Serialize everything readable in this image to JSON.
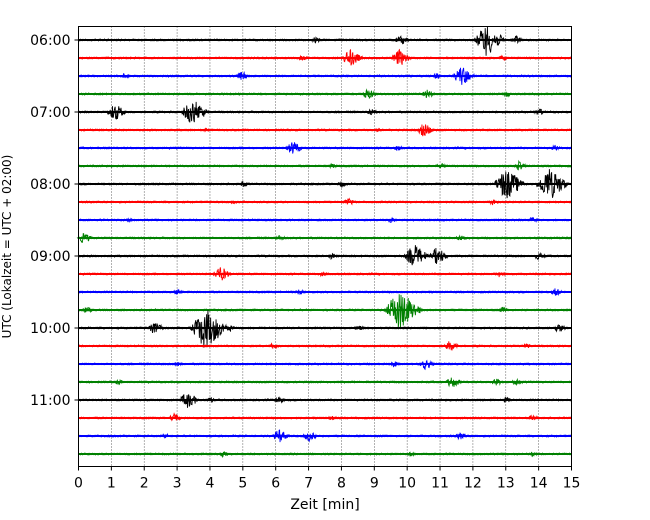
{
  "chart_data": {
    "type": "line",
    "title": "",
    "xlabel": "Zeit  [min]",
    "ylabel": "UTC (Lokalzeit = UTC + 02:00)",
    "xlim": [
      0,
      15
    ],
    "x_ticks": [
      "0",
      "1",
      "2",
      "3",
      "4",
      "5",
      "6",
      "7",
      "8",
      "9",
      "10",
      "11",
      "12",
      "13",
      "14",
      "15"
    ],
    "y_tick_labels": [
      "06:00",
      "07:00",
      "08:00",
      "09:00",
      "10:00",
      "11:00"
    ],
    "grid": "vertical dotted",
    "trace_interval_min": 15,
    "trace_colors": [
      "#000000",
      "#ff0000",
      "#0000ff",
      "#008000"
    ],
    "traces": [
      {
        "start": "06:00",
        "events": [
          [
            12.4,
            1.0
          ],
          [
            9.8,
            0.35
          ],
          [
            13.3,
            0.3
          ],
          [
            7.2,
            0.2
          ]
        ]
      },
      {
        "start": "06:15",
        "events": [
          [
            8.25,
            0.6
          ],
          [
            9.75,
            0.55
          ],
          [
            12.9,
            0.2
          ],
          [
            6.8,
            0.2
          ]
        ]
      },
      {
        "start": "06:30",
        "events": [
          [
            11.65,
            0.65
          ],
          [
            4.95,
            0.3
          ],
          [
            10.9,
            0.2
          ],
          [
            1.4,
            0.2
          ]
        ]
      },
      {
        "start": "06:45",
        "events": [
          [
            8.8,
            0.35
          ],
          [
            10.6,
            0.3
          ],
          [
            13.0,
            0.2
          ]
        ]
      },
      {
        "start": "07:00",
        "events": [
          [
            3.45,
            0.85
          ],
          [
            1.1,
            0.55
          ],
          [
            14.0,
            0.25
          ],
          [
            8.9,
            0.2
          ]
        ]
      },
      {
        "start": "07:15",
        "events": [
          [
            10.5,
            0.45
          ],
          [
            9.1,
            0.15
          ],
          [
            3.9,
            0.15
          ]
        ]
      },
      {
        "start": "07:30",
        "events": [
          [
            6.5,
            0.45
          ],
          [
            14.5,
            0.2
          ],
          [
            9.7,
            0.2
          ]
        ]
      },
      {
        "start": "07:45",
        "events": [
          [
            13.4,
            0.3
          ],
          [
            11.0,
            0.2
          ],
          [
            7.7,
            0.15
          ]
        ]
      },
      {
        "start": "08:00",
        "events": [
          [
            13.0,
            1.0
          ],
          [
            14.3,
            1.05
          ],
          [
            5.0,
            0.2
          ],
          [
            8.0,
            0.2
          ]
        ]
      },
      {
        "start": "08:15",
        "events": [
          [
            8.2,
            0.3
          ],
          [
            12.6,
            0.2
          ],
          [
            4.7,
            0.15
          ]
        ]
      },
      {
        "start": "08:30",
        "events": [
          [
            9.5,
            0.2
          ],
          [
            1.5,
            0.15
          ],
          [
            13.8,
            0.2
          ]
        ]
      },
      {
        "start": "08:45",
        "events": [
          [
            0.15,
            0.35
          ],
          [
            11.6,
            0.2
          ],
          [
            6.1,
            0.2
          ]
        ]
      },
      {
        "start": "09:00",
        "events": [
          [
            10.2,
            0.75
          ],
          [
            10.9,
            0.55
          ],
          [
            14.0,
            0.25
          ],
          [
            7.7,
            0.2
          ]
        ]
      },
      {
        "start": "09:15",
        "events": [
          [
            4.3,
            0.5
          ],
          [
            7.4,
            0.2
          ],
          [
            12.8,
            0.2
          ]
        ]
      },
      {
        "start": "09:30",
        "events": [
          [
            14.5,
            0.25
          ],
          [
            6.7,
            0.2
          ],
          [
            3.0,
            0.2
          ]
        ]
      },
      {
        "start": "09:45",
        "events": [
          [
            9.75,
            1.25
          ],
          [
            0.25,
            0.25
          ],
          [
            12.9,
            0.2
          ]
        ]
      },
      {
        "start": "10:00",
        "events": [
          [
            3.85,
            1.3
          ],
          [
            2.3,
            0.4
          ],
          [
            14.6,
            0.3
          ],
          [
            4.6,
            0.25
          ],
          [
            8.5,
            0.2
          ]
        ]
      },
      {
        "start": "10:15",
        "events": [
          [
            11.3,
            0.35
          ],
          [
            5.9,
            0.2
          ],
          [
            13.6,
            0.2
          ]
        ]
      },
      {
        "start": "10:30",
        "events": [
          [
            10.55,
            0.35
          ],
          [
            9.6,
            0.2
          ],
          [
            3.0,
            0.15
          ]
        ]
      },
      {
        "start": "10:45",
        "events": [
          [
            11.35,
            0.4
          ],
          [
            12.7,
            0.25
          ],
          [
            13.3,
            0.25
          ],
          [
            1.2,
            0.2
          ]
        ]
      },
      {
        "start": "11:00",
        "events": [
          [
            3.3,
            0.55
          ],
          [
            6.1,
            0.25
          ],
          [
            4.0,
            0.2
          ],
          [
            13.0,
            0.2
          ]
        ]
      },
      {
        "start": "11:15",
        "events": [
          [
            2.9,
            0.3
          ],
          [
            13.8,
            0.2
          ],
          [
            7.7,
            0.15
          ]
        ]
      },
      {
        "start": "11:30",
        "events": [
          [
            6.1,
            0.45
          ],
          [
            7.0,
            0.35
          ],
          [
            11.6,
            0.25
          ],
          [
            2.6,
            0.2
          ]
        ]
      },
      {
        "start": "11:45",
        "events": [
          [
            4.4,
            0.2
          ],
          [
            10.1,
            0.15
          ],
          [
            13.8,
            0.15
          ]
        ]
      }
    ]
  }
}
